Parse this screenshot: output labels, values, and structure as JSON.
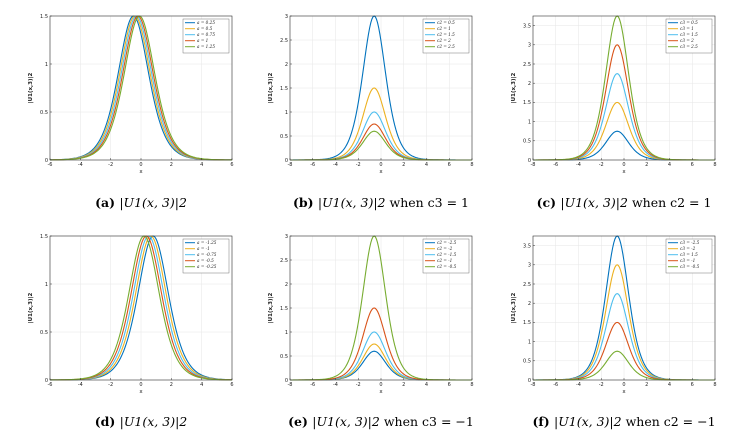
{
  "palette": [
    "#0072BD",
    "#EDB120",
    "#4DBEEE",
    "#D95319",
    "#77AC30"
  ],
  "chart_data": [
    {
      "type": "line",
      "panel": "a",
      "caption_label": "(a)",
      "caption_expr": "|U1(x, 3)|2",
      "caption_cond": "",
      "xlabel": "x",
      "ylabel": "|U1(x,3)|2",
      "xlim": [
        -6,
        6
      ],
      "ylim": [
        0,
        1.5
      ],
      "xticks": [
        "-6",
        "-4",
        "-2",
        "0",
        "2",
        "4",
        "6"
      ],
      "yticks": [
        "0",
        "0.5",
        "1",
        "1.5"
      ],
      "legend_position": "top-right",
      "series": [
        {
          "name": "a = 0.25",
          "peak": 1.5,
          "center": -0.5
        },
        {
          "name": "a = 0.5",
          "peak": 1.5,
          "center": -0.4
        },
        {
          "name": "a = 0.75",
          "peak": 1.5,
          "center": -0.3
        },
        {
          "name": "a = 1",
          "peak": 1.5,
          "center": -0.2
        },
        {
          "name": "a = 1.25",
          "peak": 1.5,
          "center": -0.1
        }
      ]
    },
    {
      "type": "line",
      "panel": "b",
      "caption_label": "(b)",
      "caption_expr": "|U1(x, 3)|2",
      "caption_cond": "when c3 = 1",
      "xlabel": "x",
      "ylabel": "|U1(x,3)|2",
      "xlim": [
        -8,
        8
      ],
      "ylim": [
        0,
        3
      ],
      "xticks": [
        "-8",
        "-6",
        "-4",
        "-2",
        "0",
        "2",
        "4",
        "6",
        "8"
      ],
      "yticks": [
        "0",
        "0.5",
        "1",
        "1.5",
        "2",
        "2.5",
        "3"
      ],
      "legend_position": "top-right",
      "series": [
        {
          "name": "c2 = 0.5",
          "peak": 3.0,
          "center": -0.6
        },
        {
          "name": "c2 = 1",
          "peak": 1.5,
          "center": -0.6
        },
        {
          "name": "c2 = 1.5",
          "peak": 1.0,
          "center": -0.6
        },
        {
          "name": "c2 = 2",
          "peak": 0.75,
          "center": -0.6
        },
        {
          "name": "c2 = 2.5",
          "peak": 0.6,
          "center": -0.6
        }
      ]
    },
    {
      "type": "line",
      "panel": "c",
      "caption_label": "(c)",
      "caption_expr": "|U1(x, 3)|2",
      "caption_cond": "when c2 = 1",
      "xlabel": "x",
      "ylabel": "|U1(x,3)|2",
      "xlim": [
        -8,
        8
      ],
      "ylim": [
        0,
        3.75
      ],
      "xticks": [
        "-8",
        "-6",
        "-4",
        "-2",
        "0",
        "2",
        "4",
        "6",
        "8"
      ],
      "yticks": [
        "0",
        "0.5",
        "1",
        "1.5",
        "2",
        "2.5",
        "3",
        "3.5"
      ],
      "legend_position": "top-right",
      "series": [
        {
          "name": "c3 = 0.5",
          "peak": 0.75,
          "center": -0.6
        },
        {
          "name": "c3 = 1",
          "peak": 1.5,
          "center": -0.6
        },
        {
          "name": "c3 = 1.5",
          "peak": 2.25,
          "center": -0.6
        },
        {
          "name": "c3 = 2",
          "peak": 3.0,
          "center": -0.6
        },
        {
          "name": "c3 = 2.5",
          "peak": 3.75,
          "center": -0.6
        }
      ]
    },
    {
      "type": "line",
      "panel": "d",
      "caption_label": "(d)",
      "caption_expr": "|U1(x, 3)|2",
      "caption_cond": "",
      "xlabel": "x",
      "ylabel": "|U1(x,3)|2",
      "xlim": [
        -6,
        6
      ],
      "ylim": [
        0,
        1.5
      ],
      "xticks": [
        "-6",
        "-4",
        "-2",
        "0",
        "2",
        "4",
        "6"
      ],
      "yticks": [
        "0",
        "0.5",
        "1",
        "1.5"
      ],
      "legend_position": "top-right",
      "series": [
        {
          "name": "a = -1.25",
          "peak": 1.5,
          "center": 0.8
        },
        {
          "name": "a = -1",
          "peak": 1.5,
          "center": 0.65
        },
        {
          "name": "a = -0.75",
          "peak": 1.5,
          "center": 0.5
        },
        {
          "name": "a = -0.5",
          "peak": 1.5,
          "center": 0.35
        },
        {
          "name": "a = -0.25",
          "peak": 1.5,
          "center": 0.2
        }
      ]
    },
    {
      "type": "line",
      "panel": "e",
      "caption_label": "(e)",
      "caption_expr": "|U1(x, 3)|2",
      "caption_cond": "when c3 = −1",
      "xlabel": "x",
      "ylabel": "|U1(x,3)|2",
      "xlim": [
        -8,
        8
      ],
      "ylim": [
        0,
        3
      ],
      "xticks": [
        "-8",
        "-6",
        "-4",
        "-2",
        "0",
        "2",
        "4",
        "6",
        "8"
      ],
      "yticks": [
        "0",
        "0.5",
        "1",
        "1.5",
        "2",
        "2.5",
        "3"
      ],
      "legend_position": "top-right",
      "series": [
        {
          "name": "c2 = -2.5",
          "peak": 0.6,
          "center": -0.6
        },
        {
          "name": "c2 = -2",
          "peak": 0.75,
          "center": -0.6
        },
        {
          "name": "c2 = -1.5",
          "peak": 1.0,
          "center": -0.6
        },
        {
          "name": "c2 = -1",
          "peak": 1.5,
          "center": -0.6
        },
        {
          "name": "c2 = -0.5",
          "peak": 3.0,
          "center": -0.6
        }
      ]
    },
    {
      "type": "line",
      "panel": "f",
      "caption_label": "(f)",
      "caption_expr": "|U1(x, 3)|2",
      "caption_cond": "when c2 = −1",
      "xlabel": "x",
      "ylabel": "|U1(x,3)|2",
      "xlim": [
        -8,
        8
      ],
      "ylim": [
        0,
        3.75
      ],
      "xticks": [
        "-8",
        "-6",
        "-4",
        "-2",
        "0",
        "2",
        "4",
        "6",
        "8"
      ],
      "yticks": [
        "0",
        "0.5",
        "1",
        "1.5",
        "2",
        "2.5",
        "3",
        "3.5"
      ],
      "legend_position": "top-right",
      "series": [
        {
          "name": "c3 = -2.5",
          "peak": 3.75,
          "center": -0.6
        },
        {
          "name": "c3 = -2",
          "peak": 3.0,
          "center": -0.6
        },
        {
          "name": "c3 = 1.5",
          "peak": 2.25,
          "center": -0.6
        },
        {
          "name": "c3 = -1",
          "peak": 1.5,
          "center": -0.6
        },
        {
          "name": "c3 = -0.5",
          "peak": 0.75,
          "center": -0.6
        }
      ]
    }
  ]
}
